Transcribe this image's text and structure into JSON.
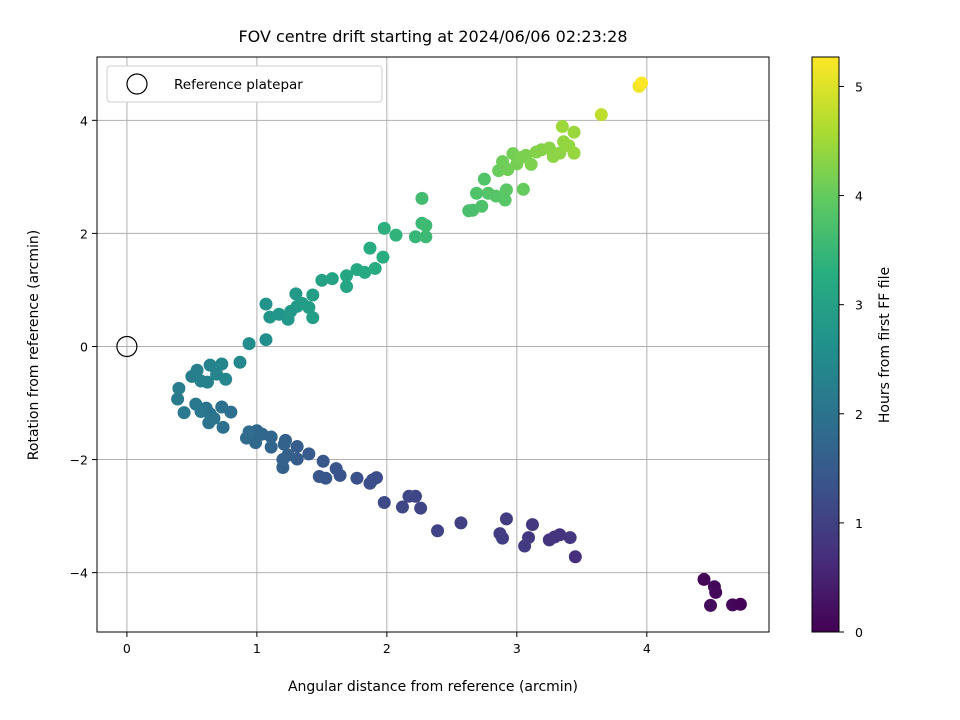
{
  "chart_data": {
    "type": "scatter",
    "title": "FOV centre drift starting at 2024/06/06 02:23:28",
    "xlabel": "Angular distance from reference (arcmin)",
    "ylabel": "Rotation from reference (arcmin)",
    "xlim": [
      -0.23,
      4.94
    ],
    "ylim": [
      -5.05,
      5.12
    ],
    "xticks": [
      0,
      1,
      2,
      3,
      4
    ],
    "yticks": [
      -4,
      -2,
      0,
      2,
      4
    ],
    "grid": true,
    "legend": {
      "label": "Reference platepar",
      "placement": "upper-left"
    },
    "colorbar": {
      "label": "Hours from first FF file",
      "range": [
        0,
        5.27
      ],
      "ticks": [
        0,
        1,
        2,
        3,
        4,
        5
      ],
      "colormap": "viridis"
    },
    "reference_point": {
      "x": 0,
      "y": 0
    },
    "points": [
      {
        "x": 4.44,
        "y": -4.12,
        "t": 0.05
      },
      {
        "x": 4.52,
        "y": -4.25,
        "t": 0.1
      },
      {
        "x": 4.53,
        "y": -4.35,
        "t": 0.12
      },
      {
        "x": 4.49,
        "y": -4.58,
        "t": 0.15
      },
      {
        "x": 4.66,
        "y": -4.57,
        "t": 0.08
      },
      {
        "x": 4.72,
        "y": -4.56,
        "t": 0.03
      },
      {
        "x": 3.45,
        "y": -3.72,
        "t": 0.7
      },
      {
        "x": 3.33,
        "y": -3.33,
        "t": 0.75
      },
      {
        "x": 3.29,
        "y": -3.37,
        "t": 0.78
      },
      {
        "x": 3.25,
        "y": -3.42,
        "t": 0.8
      },
      {
        "x": 3.41,
        "y": -3.38,
        "t": 0.82
      },
      {
        "x": 3.12,
        "y": -3.15,
        "t": 0.85
      },
      {
        "x": 3.09,
        "y": -3.38,
        "t": 0.88
      },
      {
        "x": 3.06,
        "y": -3.53,
        "t": 0.9
      },
      {
        "x": 2.92,
        "y": -3.05,
        "t": 0.92
      },
      {
        "x": 2.87,
        "y": -3.31,
        "t": 0.95
      },
      {
        "x": 2.89,
        "y": -3.39,
        "t": 0.97
      },
      {
        "x": 2.57,
        "y": -3.12,
        "t": 1.0
      },
      {
        "x": 2.39,
        "y": -3.26,
        "t": 1.05
      },
      {
        "x": 2.26,
        "y": -2.86,
        "t": 1.08
      },
      {
        "x": 2.22,
        "y": -2.65,
        "t": 1.1
      },
      {
        "x": 2.17,
        "y": -2.65,
        "t": 1.12
      },
      {
        "x": 2.12,
        "y": -2.84,
        "t": 1.14
      },
      {
        "x": 1.98,
        "y": -2.76,
        "t": 1.18
      },
      {
        "x": 1.92,
        "y": -2.32,
        "t": 1.22
      },
      {
        "x": 1.89,
        "y": -2.36,
        "t": 1.25
      },
      {
        "x": 1.87,
        "y": -2.42,
        "t": 1.27
      },
      {
        "x": 1.77,
        "y": -2.33,
        "t": 1.3
      },
      {
        "x": 1.64,
        "y": -2.28,
        "t": 1.35
      },
      {
        "x": 1.61,
        "y": -2.16,
        "t": 1.38
      },
      {
        "x": 1.53,
        "y": -2.33,
        "t": 1.4
      },
      {
        "x": 1.48,
        "y": -2.3,
        "t": 1.42
      },
      {
        "x": 1.51,
        "y": -2.03,
        "t": 1.45
      },
      {
        "x": 1.4,
        "y": -1.9,
        "t": 1.5
      },
      {
        "x": 1.31,
        "y": -1.99,
        "t": 1.52
      },
      {
        "x": 1.31,
        "y": -1.77,
        "t": 1.55
      },
      {
        "x": 1.22,
        "y": -1.66,
        "t": 1.58
      },
      {
        "x": 1.24,
        "y": -1.92,
        "t": 1.6
      },
      {
        "x": 1.2,
        "y": -2.14,
        "t": 1.62
      },
      {
        "x": 1.2,
        "y": -2.0,
        "t": 1.64
      },
      {
        "x": 1.21,
        "y": -1.73,
        "t": 1.66
      },
      {
        "x": 1.11,
        "y": -1.78,
        "t": 1.7
      },
      {
        "x": 1.11,
        "y": -1.6,
        "t": 1.72
      },
      {
        "x": 1.04,
        "y": -1.55,
        "t": 1.75
      },
      {
        "x": 1.0,
        "y": -1.49,
        "t": 1.78
      },
      {
        "x": 0.99,
        "y": -1.7,
        "t": 1.8
      },
      {
        "x": 0.92,
        "y": -1.62,
        "t": 1.82
      },
      {
        "x": 0.94,
        "y": -1.51,
        "t": 1.85
      },
      {
        "x": 0.8,
        "y": -1.16,
        "t": 1.9
      },
      {
        "x": 0.74,
        "y": -1.43,
        "t": 1.92
      },
      {
        "x": 0.73,
        "y": -1.07,
        "t": 1.95
      },
      {
        "x": 0.67,
        "y": -1.27,
        "t": 1.98
      },
      {
        "x": 0.63,
        "y": -1.35,
        "t": 2.0
      },
      {
        "x": 0.64,
        "y": -1.19,
        "t": 2.02
      },
      {
        "x": 0.61,
        "y": -1.09,
        "t": 2.05
      },
      {
        "x": 0.57,
        "y": -1.15,
        "t": 2.08
      },
      {
        "x": 0.53,
        "y": -1.02,
        "t": 2.1
      },
      {
        "x": 0.44,
        "y": -1.17,
        "t": 2.12
      },
      {
        "x": 0.39,
        "y": -0.93,
        "t": 2.15
      },
      {
        "x": 0.4,
        "y": -0.74,
        "t": 2.18
      },
      {
        "x": 0.5,
        "y": -0.53,
        "t": 2.22
      },
      {
        "x": 0.54,
        "y": -0.42,
        "t": 2.25
      },
      {
        "x": 0.57,
        "y": -0.61,
        "t": 2.28
      },
      {
        "x": 0.62,
        "y": -0.63,
        "t": 2.3
      },
      {
        "x": 0.64,
        "y": -0.33,
        "t": 2.32
      },
      {
        "x": 0.69,
        "y": -0.49,
        "t": 2.35
      },
      {
        "x": 0.73,
        "y": -0.31,
        "t": 2.38
      },
      {
        "x": 0.76,
        "y": -0.58,
        "t": 2.4
      },
      {
        "x": 0.87,
        "y": -0.28,
        "t": 2.45
      },
      {
        "x": 0.94,
        "y": 0.05,
        "t": 2.55
      },
      {
        "x": 1.07,
        "y": 0.12,
        "t": 2.6
      },
      {
        "x": 1.07,
        "y": 0.75,
        "t": 2.68
      },
      {
        "x": 1.1,
        "y": 0.52,
        "t": 2.72
      },
      {
        "x": 1.17,
        "y": 0.57,
        "t": 2.75
      },
      {
        "x": 1.24,
        "y": 0.48,
        "t": 2.78
      },
      {
        "x": 1.26,
        "y": 0.62,
        "t": 2.8
      },
      {
        "x": 1.31,
        "y": 0.71,
        "t": 2.82
      },
      {
        "x": 1.3,
        "y": 0.93,
        "t": 2.85
      },
      {
        "x": 1.35,
        "y": 0.76,
        "t": 2.88
      },
      {
        "x": 1.4,
        "y": 0.69,
        "t": 2.9
      },
      {
        "x": 1.43,
        "y": 0.51,
        "t": 2.92
      },
      {
        "x": 1.43,
        "y": 0.91,
        "t": 2.95
      },
      {
        "x": 1.5,
        "y": 1.17,
        "t": 3.0
      },
      {
        "x": 1.58,
        "y": 1.2,
        "t": 3.05
      },
      {
        "x": 1.69,
        "y": 1.06,
        "t": 3.1
      },
      {
        "x": 1.69,
        "y": 1.25,
        "t": 3.12
      },
      {
        "x": 1.77,
        "y": 1.36,
        "t": 3.15
      },
      {
        "x": 1.83,
        "y": 1.31,
        "t": 3.18
      },
      {
        "x": 1.87,
        "y": 1.74,
        "t": 3.22
      },
      {
        "x": 1.91,
        "y": 1.38,
        "t": 3.25
      },
      {
        "x": 1.97,
        "y": 1.58,
        "t": 3.28
      },
      {
        "x": 1.98,
        "y": 2.09,
        "t": 3.35
      },
      {
        "x": 2.07,
        "y": 1.97,
        "t": 3.4
      },
      {
        "x": 2.22,
        "y": 1.94,
        "t": 3.48
      },
      {
        "x": 2.27,
        "y": 2.18,
        "t": 3.52
      },
      {
        "x": 2.3,
        "y": 1.94,
        "t": 3.55
      },
      {
        "x": 2.3,
        "y": 2.14,
        "t": 3.58
      },
      {
        "x": 2.27,
        "y": 2.62,
        "t": 3.62
      },
      {
        "x": 2.63,
        "y": 2.4,
        "t": 3.7
      },
      {
        "x": 2.66,
        "y": 2.41,
        "t": 3.72
      },
      {
        "x": 2.73,
        "y": 2.48,
        "t": 3.75
      },
      {
        "x": 2.69,
        "y": 2.71,
        "t": 3.78
      },
      {
        "x": 2.75,
        "y": 2.96,
        "t": 3.8
      },
      {
        "x": 2.78,
        "y": 2.71,
        "t": 3.82
      },
      {
        "x": 2.84,
        "y": 2.66,
        "t": 3.85
      },
      {
        "x": 2.91,
        "y": 2.59,
        "t": 3.87
      },
      {
        "x": 2.92,
        "y": 2.77,
        "t": 3.9
      },
      {
        "x": 3.05,
        "y": 2.78,
        "t": 4.0
      },
      {
        "x": 2.86,
        "y": 3.11,
        "t": 4.05
      },
      {
        "x": 2.89,
        "y": 3.27,
        "t": 4.08
      },
      {
        "x": 2.93,
        "y": 3.13,
        "t": 4.1
      },
      {
        "x": 2.97,
        "y": 3.41,
        "t": 4.12
      },
      {
        "x": 3.0,
        "y": 3.23,
        "t": 4.15
      },
      {
        "x": 3.03,
        "y": 3.34,
        "t": 4.18
      },
      {
        "x": 3.07,
        "y": 3.38,
        "t": 4.2
      },
      {
        "x": 3.11,
        "y": 3.22,
        "t": 4.22
      },
      {
        "x": 3.15,
        "y": 3.44,
        "t": 4.25
      },
      {
        "x": 3.19,
        "y": 3.48,
        "t": 4.28
      },
      {
        "x": 3.25,
        "y": 3.51,
        "t": 4.3
      },
      {
        "x": 3.28,
        "y": 3.36,
        "t": 4.32
      },
      {
        "x": 3.33,
        "y": 3.42,
        "t": 4.35
      },
      {
        "x": 3.36,
        "y": 3.62,
        "t": 4.38
      },
      {
        "x": 3.4,
        "y": 3.55,
        "t": 4.4
      },
      {
        "x": 3.44,
        "y": 3.42,
        "t": 4.42
      },
      {
        "x": 3.44,
        "y": 3.79,
        "t": 4.45
      },
      {
        "x": 3.35,
        "y": 3.89,
        "t": 4.48
      },
      {
        "x": 3.65,
        "y": 4.1,
        "t": 4.75
      },
      {
        "x": 3.94,
        "y": 4.6,
        "t": 5.15
      },
      {
        "x": 3.96,
        "y": 4.66,
        "t": 5.25
      }
    ]
  }
}
